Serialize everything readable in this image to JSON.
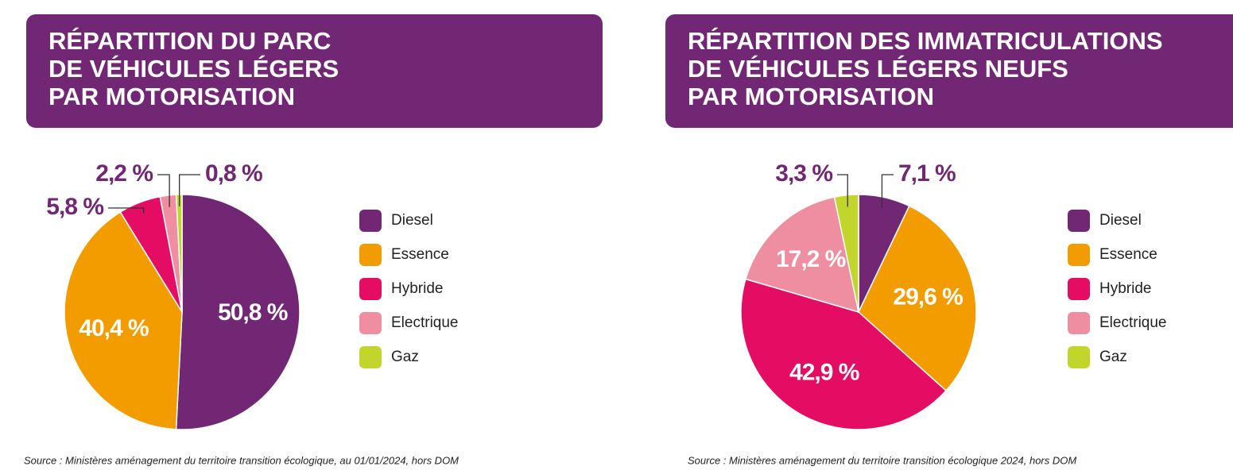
{
  "chart_data": [
    {
      "type": "pie",
      "title": [
        "RÉPARTITION DU PARC",
        "DE VÉHICULES LÉGERS",
        "PAR MOTORISATION"
      ],
      "categories": [
        "Diesel",
        "Essence",
        "Hybride",
        "Electrique",
        "Gaz"
      ],
      "values": [
        50.8,
        40.4,
        5.8,
        2.2,
        0.8
      ],
      "value_labels": [
        "50,8 %",
        "40,4 %",
        "5,8 %",
        "2,2 %",
        "0,8 %"
      ],
      "colors": [
        "#722774",
        "#f39c00",
        "#e50d63",
        "#ee8ea0",
        "#c2d52a"
      ],
      "source": "Source : Ministères aménagement du territoire transition écologique, au 01/01/2024, hors DOM"
    },
    {
      "type": "pie",
      "title": [
        "RÉPARTITION DES IMMATRICULATIONS",
        "DE VÉHICULES LÉGERS NEUFS",
        "PAR MOTORISATION"
      ],
      "categories": [
        "Diesel",
        "Essence",
        "Hybride",
        "Electrique",
        "Gaz"
      ],
      "values": [
        7.1,
        29.6,
        42.9,
        17.2,
        3.3
      ],
      "value_labels": [
        "7,1 %",
        "29,6 %",
        "42,9 %",
        "17,2 %",
        "3,3 %"
      ],
      "colors": [
        "#722774",
        "#f39c00",
        "#e50d63",
        "#ee8ea0",
        "#c2d52a"
      ],
      "source": "Source : Ministères aménagement du territoire transition écologique 2024, hors DOM"
    }
  ]
}
